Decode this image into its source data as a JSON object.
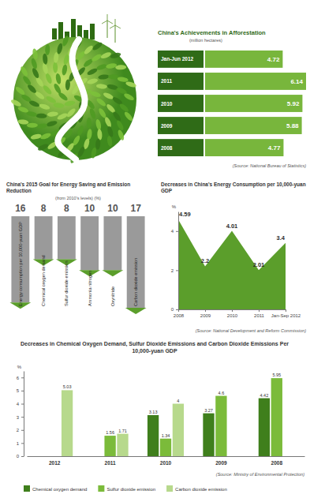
{
  "chart_data": [
    {
      "type": "bar",
      "orientation": "horizontal",
      "title": "China's Achievements in Afforestation",
      "subtitle": "(million hectares)",
      "categories": [
        "Jan-Jun 2012",
        "2011",
        "2010",
        "2009",
        "2008"
      ],
      "values": [
        4.72,
        6.14,
        5.92,
        5.88,
        4.77
      ],
      "color": "#78b63c",
      "data_labels": true,
      "tick_labels": "y",
      "source": "(Source: National Bureau of Statistics)"
    },
    {
      "type": "bar",
      "title": "China's 2015 Goal for Energy Saving and Emission Reduction",
      "subtitle": "(from 2010's levels) (%)",
      "categories": [
        "Energy consumption per 10,000-yuan GDP",
        "Chemical oxygen demand",
        "Sulfur dioxide emission",
        "Ammonia nitrogen",
        "Oxynitride",
        "Carbon dioxide emission"
      ],
      "values": [
        16,
        8,
        8,
        10,
        10,
        17
      ],
      "color": "#9a9a9a",
      "data_labels": true,
      "tick_labels": "x"
    },
    {
      "type": "area",
      "title": "Decreases in China's Energy Consumption per 10,000-yuan GDP",
      "y_label": "%",
      "categories": [
        "2008",
        "2009",
        "2010",
        "2011",
        "Jan-Sep 2012"
      ],
      "values": [
        4.59,
        2.2,
        4.01,
        2.01,
        3.4
      ],
      "color": "#5b9e2b",
      "ylim": [
        0,
        5
      ],
      "yticks": [
        0,
        2,
        4
      ],
      "data_labels": true,
      "source": "(Source: National Development and Reform Commission)"
    },
    {
      "type": "bar",
      "title": "Decreases in Chemical Oxygen Demand, Sulfur Dioxide Emissions and Carbon Dioxide Emissions Per 10,000-yuan GDP",
      "y_label": "%",
      "categories": [
        "2012",
        "2011",
        "2010",
        "2009",
        "2008"
      ],
      "series": [
        {
          "name": "Chemical oxygen demand",
          "color": "#3f7f1c",
          "values": [
            null,
            null,
            3.13,
            3.27,
            4.42
          ]
        },
        {
          "name": "Sulfur dioxide emission",
          "color": "#7bbb3a",
          "values": [
            null,
            1.56,
            1.34,
            4.6,
            5.95
          ]
        },
        {
          "name": "Carbon dioxide emission",
          "color": "#b7d98c",
          "values": [
            5.03,
            1.71,
            4,
            null,
            null
          ]
        }
      ],
      "ylim": [
        0,
        6.5
      ],
      "yticks": [
        0,
        1,
        2,
        3,
        4,
        5,
        6
      ],
      "data_labels": true,
      "legend": "bottom",
      "source": "(Source: Ministry of Environmental Protection)"
    }
  ]
}
